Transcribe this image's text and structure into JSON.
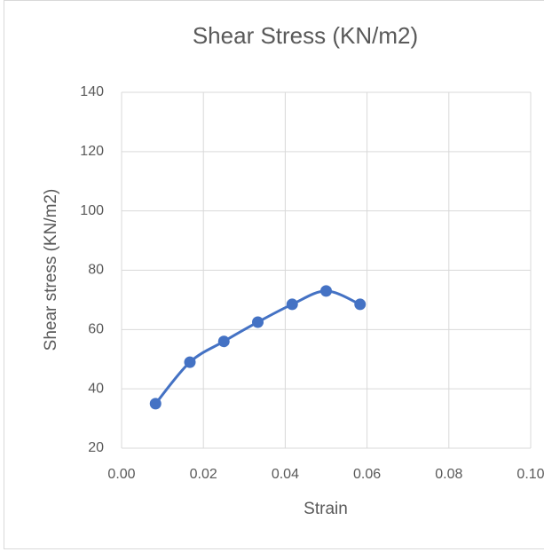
{
  "chart_data": {
    "type": "scatter",
    "title": "Shear Stress (KN/m2)",
    "x_label": "Strain",
    "y_label": "Shear stress (KN/m2)",
    "series": [
      {
        "name": "Shear stress",
        "color": "#4472c4",
        "x": [
          0.0083,
          0.0167,
          0.025,
          0.0333,
          0.0417,
          0.05,
          0.0583
        ],
        "values": [
          35,
          49,
          56,
          62.5,
          68.5,
          73,
          68.5
        ]
      }
    ],
    "xlim": [
      0,
      0.1
    ],
    "xticks": [
      {
        "value": 0,
        "label": "0.00"
      },
      {
        "value": 0.02,
        "label": "0.02"
      },
      {
        "value": 0.04,
        "label": "0.04"
      },
      {
        "value": 0.06,
        "label": "0.06"
      },
      {
        "value": 0.08,
        "label": "0.08"
      },
      {
        "value": 0.1,
        "label": "0.10"
      }
    ],
    "ylim": [
      20,
      140
    ],
    "yticks": [
      20,
      40,
      60,
      80,
      100,
      120,
      140
    ],
    "grid": true,
    "smooth": true
  }
}
